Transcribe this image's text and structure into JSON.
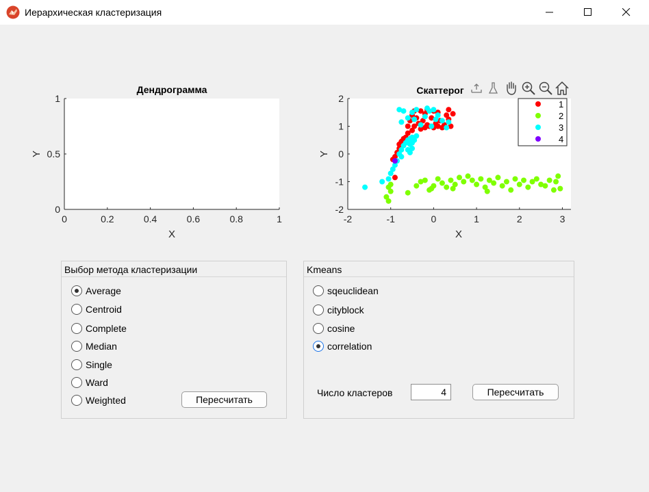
{
  "window": {
    "title": "Иерархическая кластеризация"
  },
  "dendrogram": {
    "title": "Дендрограмма",
    "xlabel": "X",
    "ylabel": "Y",
    "xticks": [
      "0",
      "0.2",
      "0.4",
      "0.6",
      "0.8",
      "1"
    ],
    "yticks": [
      "0",
      "0.5",
      "1"
    ]
  },
  "scatter": {
    "title": "Скаттерог",
    "xlabel": "X",
    "ylabel": "Y",
    "xticks": [
      "-2",
      "-1",
      "0",
      "1",
      "2",
      "3"
    ],
    "yticks": [
      "-2",
      "-1",
      "0",
      "1",
      "2"
    ],
    "legend": [
      "1",
      "2",
      "3",
      "4"
    ],
    "colors": {
      "1": "#ff0000",
      "2": "#7fff00",
      "3": "#00ffff",
      "4": "#7f00ff"
    },
    "toolbar_icons": [
      "export-icon",
      "brush-icon",
      "pan-hand-icon",
      "zoom-in-icon",
      "zoom-out-icon",
      "home-icon"
    ]
  },
  "chart_data": [
    {
      "type": "line",
      "title": "Дендрограмма",
      "xlabel": "X",
      "ylabel": "Y",
      "xlim": [
        0,
        1
      ],
      "ylim": [
        0,
        1
      ],
      "series": []
    },
    {
      "type": "scatter",
      "title": "Скаттерог",
      "xlabel": "X",
      "ylabel": "Y",
      "xlim": [
        -2,
        3.2
      ],
      "ylim": [
        -2,
        2
      ],
      "legend_position": "top-right",
      "series": [
        {
          "name": "1",
          "color": "#ff0000",
          "points": [
            [
              -0.9,
              -0.85
            ],
            [
              -0.95,
              -0.2
            ],
            [
              -0.9,
              -0.1
            ],
            [
              -0.85,
              0.05
            ],
            [
              -0.8,
              0.2
            ],
            [
              -0.8,
              0.35
            ],
            [
              -0.75,
              0.45
            ],
            [
              -0.7,
              0.55
            ],
            [
              -0.65,
              0.6
            ],
            [
              -0.6,
              0.75
            ],
            [
              -0.6,
              1.0
            ],
            [
              -0.55,
              1.2
            ],
            [
              -0.5,
              1.4
            ],
            [
              -0.45,
              1.55
            ],
            [
              -0.4,
              1.3
            ],
            [
              -0.35,
              1.1
            ],
            [
              -0.3,
              0.9
            ],
            [
              -0.25,
              1.2
            ],
            [
              -0.2,
              1.45
            ],
            [
              -0.15,
              1.6
            ],
            [
              -0.1,
              1.0
            ],
            [
              -0.05,
              1.3
            ],
            [
              0.0,
              0.95
            ],
            [
              0.05,
              1.1
            ],
            [
              0.1,
              1.5
            ],
            [
              0.15,
              1.2
            ],
            [
              0.2,
              0.95
            ],
            [
              0.25,
              1.05
            ],
            [
              0.3,
              1.4
            ],
            [
              0.35,
              1.6
            ],
            [
              0.4,
              1.0
            ],
            [
              0.45,
              1.45
            ],
            [
              -0.3,
              1.55
            ],
            [
              -0.2,
              0.95
            ],
            [
              0.1,
              1.0
            ],
            [
              -0.45,
              1.0
            ],
            [
              -0.5,
              0.85
            ],
            [
              0.0,
              1.55
            ],
            [
              0.35,
              1.25
            ],
            [
              -0.15,
              1.05
            ]
          ]
        },
        {
          "name": "2",
          "color": "#7fff00",
          "points": [
            [
              -1.05,
              -1.2
            ],
            [
              -1.1,
              -1.55
            ],
            [
              -1.0,
              -1.35
            ],
            [
              -1.05,
              -1.7
            ],
            [
              -1.0,
              -1.1
            ],
            [
              -0.6,
              -1.4
            ],
            [
              -0.4,
              -1.15
            ],
            [
              -0.3,
              -1.0
            ],
            [
              -0.2,
              -0.95
            ],
            [
              -0.1,
              -1.3
            ],
            [
              0.0,
              -1.15
            ],
            [
              0.1,
              -0.9
            ],
            [
              0.2,
              -1.05
            ],
            [
              0.3,
              -1.2
            ],
            [
              0.4,
              -0.95
            ],
            [
              0.5,
              -1.1
            ],
            [
              0.6,
              -0.85
            ],
            [
              0.7,
              -1.0
            ],
            [
              0.8,
              -0.8
            ],
            [
              0.9,
              -0.95
            ],
            [
              1.0,
              -1.1
            ],
            [
              1.1,
              -0.9
            ],
            [
              1.2,
              -1.2
            ],
            [
              1.3,
              -0.95
            ],
            [
              1.4,
              -1.05
            ],
            [
              1.5,
              -0.85
            ],
            [
              1.6,
              -1.15
            ],
            [
              1.7,
              -1.0
            ],
            [
              1.8,
              -1.3
            ],
            [
              1.9,
              -0.9
            ],
            [
              2.0,
              -1.1
            ],
            [
              2.1,
              -0.95
            ],
            [
              2.2,
              -1.2
            ],
            [
              2.3,
              -1.0
            ],
            [
              2.4,
              -0.9
            ],
            [
              2.5,
              -1.1
            ],
            [
              2.6,
              -1.15
            ],
            [
              2.7,
              -0.95
            ],
            [
              2.8,
              -1.3
            ],
            [
              2.9,
              -0.8
            ],
            [
              2.95,
              -1.25
            ],
            [
              2.85,
              -1.0
            ],
            [
              1.25,
              -1.35
            ],
            [
              0.45,
              -1.25
            ],
            [
              -0.05,
              -1.25
            ]
          ]
        },
        {
          "name": "3",
          "color": "#00ffff",
          "points": [
            [
              -1.6,
              -1.2
            ],
            [
              -1.2,
              -1.0
            ],
            [
              -1.05,
              -0.9
            ],
            [
              -1.0,
              -0.7
            ],
            [
              -0.95,
              -0.55
            ],
            [
              -0.9,
              -0.4
            ],
            [
              -0.85,
              -0.25
            ],
            [
              -0.8,
              0.0
            ],
            [
              -0.75,
              0.15
            ],
            [
              -0.7,
              0.3
            ],
            [
              -0.65,
              0.4
            ],
            [
              -0.6,
              0.5
            ],
            [
              -0.55,
              0.55
            ],
            [
              -0.5,
              0.6
            ],
            [
              -0.55,
              0.35
            ],
            [
              -0.5,
              0.2
            ],
            [
              -0.75,
              -0.1
            ],
            [
              -0.6,
              0.15
            ],
            [
              -0.45,
              0.5
            ],
            [
              -0.5,
              0.4
            ],
            [
              -0.55,
              0.05
            ],
            [
              -0.4,
              0.65
            ],
            [
              -0.8,
              1.6
            ],
            [
              -0.7,
              1.55
            ],
            [
              -0.6,
              1.3
            ],
            [
              -0.5,
              1.5
            ],
            [
              -0.4,
              1.6
            ],
            [
              -0.3,
              1.05
            ],
            [
              -0.2,
              1.35
            ],
            [
              -0.1,
              1.55
            ],
            [
              0.0,
              1.6
            ],
            [
              0.1,
              1.4
            ],
            [
              0.2,
              1.2
            ],
            [
              0.3,
              0.95
            ],
            [
              -0.05,
              1.0
            ],
            [
              -0.15,
              1.65
            ],
            [
              0.05,
              1.25
            ],
            [
              -0.75,
              1.15
            ],
            [
              0.35,
              1.15
            ],
            [
              -0.45,
              1.25
            ]
          ]
        },
        {
          "name": "4",
          "color": "#7f00ff",
          "points": [
            [
              -0.9,
              -0.25
            ]
          ]
        }
      ]
    }
  ],
  "hier_panel": {
    "title": "Выбор метода кластеризации",
    "options": [
      "Average",
      "Centroid",
      "Complete",
      "Median",
      "Single",
      "Ward",
      "Weighted"
    ],
    "selected": "Average",
    "button": "Пересчитать"
  },
  "kmeans_panel": {
    "title": "Kmeans",
    "options": [
      "sqeuclidean",
      "cityblock",
      "cosine",
      "correlation"
    ],
    "selected": "correlation",
    "clusters_label": "Число кластеров",
    "clusters_value": "4",
    "button": "Пересчитать"
  }
}
